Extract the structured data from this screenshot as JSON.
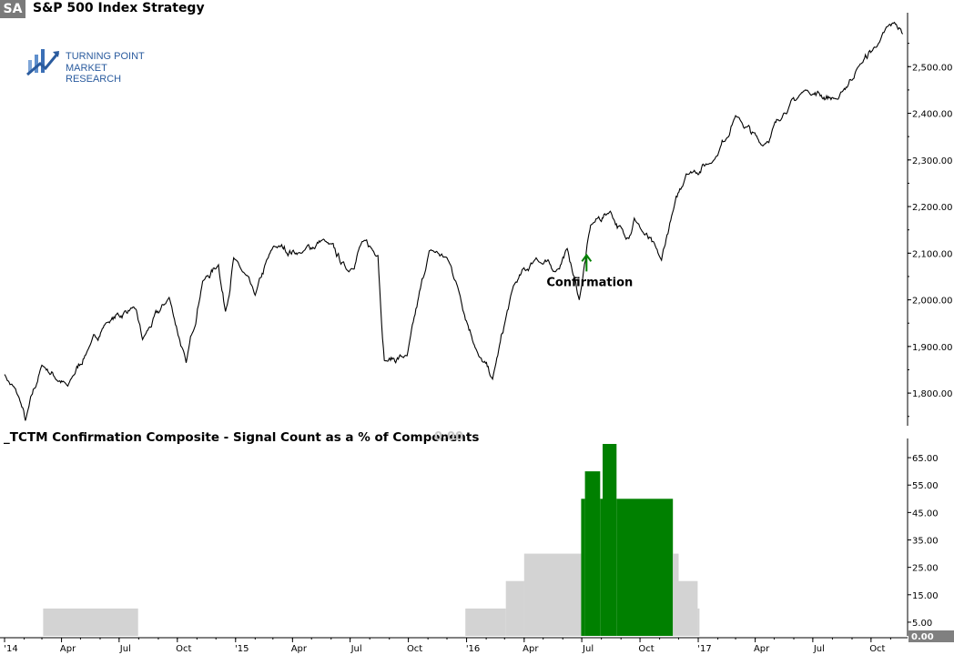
{
  "header": {
    "ticker": "SA",
    "title": "S&P 500 Index  Strategy"
  },
  "logo": {
    "line1": "TURNING POINT",
    "line2": "MARKET RESEARCH",
    "color": "#3b6fb6"
  },
  "indicator": {
    "title": "_TCTM Confirmation Composite - Signal Count as a % of Components",
    "value": "0.00"
  },
  "colors": {
    "price_line": "#000000",
    "signal_on": "#008000",
    "signal_off": "#d3d3d3",
    "annotation": "#008000"
  },
  "chart_data": [
    {
      "type": "line",
      "title": "S&P 500 Index  Strategy",
      "x_ticks": [
        "'14",
        "Apr",
        "Jul",
        "Oct",
        "'15",
        "Apr",
        "Jul",
        "Oct",
        "'16",
        "Apr",
        "Jul",
        "Oct",
        "'17",
        "Apr",
        "Jul",
        "Oct"
      ],
      "y_ticks": [
        "1,800.00",
        "1,900.00",
        "2,000.00",
        "2,100.00",
        "2,200.00",
        "2,300.00",
        "2,400.00",
        "2,500.00"
      ],
      "ylim": [
        1730,
        2600
      ],
      "series": [
        {
          "x": [
            "2014-01-01",
            "2014-01-24",
            "2014-02-03",
            "2014-03-01",
            "2014-04-11",
            "2014-05-15",
            "2014-06-10",
            "2014-07-24",
            "2014-08-07",
            "2014-09-18",
            "2014-10-15",
            "2014-11-10",
            "2014-12-05",
            "2014-12-16",
            "2014-12-29",
            "2015-02-01",
            "2015-03-02",
            "2015-04-15",
            "2015-05-20",
            "2015-06-29",
            "2015-07-20",
            "2015-08-14",
            "2015-08-24",
            "2015-09-29",
            "2015-11-03",
            "2015-12-01",
            "2015-12-15",
            "2016-01-20",
            "2016-02-11",
            "2016-03-15",
            "2016-04-20",
            "2016-05-20",
            "2016-06-08",
            "2016-06-27",
            "2016-07-15",
            "2016-08-15",
            "2016-09-09",
            "2016-09-22",
            "2016-11-04",
            "2016-11-20",
            "2016-12-13",
            "2017-01-26",
            "2017-03-01",
            "2017-04-13",
            "2017-05-16",
            "2017-06-19",
            "2017-08-10",
            "2017-09-11",
            "2017-10-13",
            "2017-11-07",
            "2017-11-20"
          ],
          "values": [
            1840,
            1790,
            1741,
            1860,
            1815,
            1900,
            1950,
            1985,
            1915,
            2005,
            1865,
            2040,
            2075,
            1975,
            2090,
            2010,
            2115,
            2100,
            2130,
            2060,
            2125,
            2095,
            1870,
            1880,
            2105,
            2090,
            2040,
            1880,
            1830,
            2030,
            2090,
            2060,
            2110,
            2000,
            2160,
            2190,
            2130,
            2175,
            2085,
            2180,
            2270,
            2300,
            2395,
            2330,
            2400,
            2450,
            2430,
            2500,
            2550,
            2595,
            2570
          ]
        }
      ],
      "annotations": [
        {
          "label": "Confirmation",
          "x": "2016-06-27",
          "y": 2100,
          "arrow": "up"
        }
      ]
    },
    {
      "type": "bar",
      "title": "_TCTM Confirmation Composite - Signal Count as a % of Components",
      "y_ticks": [
        "5.00",
        "15.00",
        "25.00",
        "35.00",
        "45.00",
        "55.00",
        "65.00"
      ],
      "ylim": [
        0,
        70
      ],
      "current_value": 0,
      "series": [
        {
          "segments": [
            {
              "start": "2014-03-03",
              "end": "2014-07-31",
              "value": 10,
              "signal": "off"
            },
            {
              "start": "2015-12-30",
              "end": "2016-03-03",
              "value": 10,
              "signal": "off"
            },
            {
              "start": "2016-03-03",
              "end": "2016-04-01",
              "value": 20,
              "signal": "off"
            },
            {
              "start": "2016-04-01",
              "end": "2016-06-30",
              "value": 30,
              "signal": "off"
            },
            {
              "start": "2016-06-30",
              "end": "2016-07-06",
              "value": 50,
              "signal": "on"
            },
            {
              "start": "2016-07-06",
              "end": "2016-07-30",
              "value": 60,
              "signal": "on"
            },
            {
              "start": "2016-07-30",
              "end": "2016-08-03",
              "value": 50,
              "signal": "on"
            },
            {
              "start": "2016-08-03",
              "end": "2016-08-25",
              "value": 70,
              "signal": "on"
            },
            {
              "start": "2016-08-25",
              "end": "2016-11-22",
              "value": 50,
              "signal": "on"
            },
            {
              "start": "2016-11-22",
              "end": "2016-12-01",
              "value": 30,
              "signal": "off"
            },
            {
              "start": "2016-12-01",
              "end": "2016-12-31",
              "value": 20,
              "signal": "off"
            },
            {
              "start": "2016-12-31",
              "end": "2017-01-03",
              "value": 10,
              "signal": "off"
            }
          ]
        }
      ]
    }
  ]
}
